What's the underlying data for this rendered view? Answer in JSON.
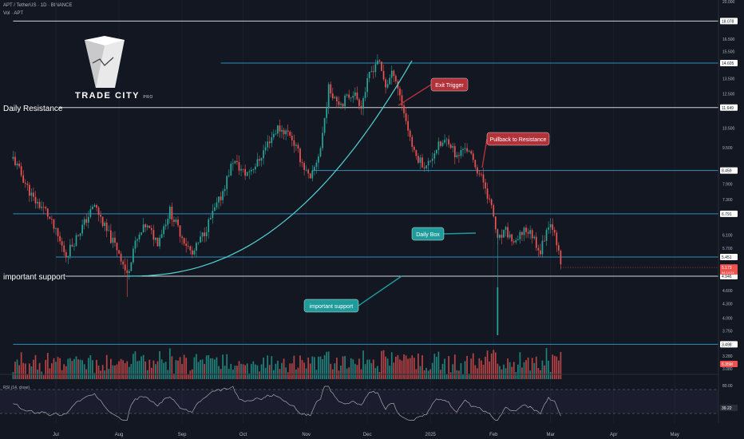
{
  "header": {
    "symbol": "APT / TetherUS · 1D · BINANCE",
    "volume_label": "Vol · APT"
  },
  "brand": {
    "name": "TRADE CITY",
    "suffix": "PRO"
  },
  "colors": {
    "background": "#131722",
    "up": "#26a69a",
    "down": "#ef5350",
    "level_blue": "#2a8fbd",
    "level_white": "#d1d4dc",
    "curve": "#53d3d3",
    "callout_red": "#b2323a",
    "callout_teal": "#1f9b9b",
    "rsi": "#a7a9b0"
  },
  "chart_data": {
    "type": "candlestick",
    "symbol": "APT / TetherUS",
    "interval": "1D",
    "exchange": "BINANCE",
    "scale": "log",
    "x_ticks": [
      "Jul",
      "Aug",
      "Sep",
      "Oct",
      "Nov",
      "Dec",
      "2025",
      "Feb",
      "Mar",
      "Apr",
      "May"
    ],
    "y_ticks": [
      "20.000",
      "16.500",
      "15.500",
      "13.500",
      "12.500",
      "10.500",
      "9.500",
      "7.900",
      "7.300",
      "6.100",
      "5.700",
      "4.600",
      "4.300",
      "4.000",
      "3.750"
    ],
    "volume_ticks": [
      "3.280",
      "3.080"
    ],
    "anchors": [
      [
        "2024-06-10",
        9.0
      ],
      [
        "2024-06-20",
        7.3
      ],
      [
        "2024-06-26",
        6.9
      ],
      [
        "2024-07-06",
        5.5
      ],
      [
        "2024-07-16",
        6.6
      ],
      [
        "2024-07-20",
        7.1
      ],
      [
        "2024-07-26",
        6.2
      ],
      [
        "2024-08-01",
        5.6
      ],
      [
        "2024-08-05",
        4.95
      ],
      [
        "2024-08-08",
        5.7
      ],
      [
        "2024-08-14",
        6.4
      ],
      [
        "2024-08-20",
        5.9
      ],
      [
        "2024-08-26",
        6.9
      ],
      [
        "2024-08-30",
        6.3
      ],
      [
        "2024-09-06",
        5.5
      ],
      [
        "2024-09-12",
        6.2
      ],
      [
        "2024-09-20",
        7.4
      ],
      [
        "2024-09-26",
        8.9
      ],
      [
        "2024-10-02",
        8.3
      ],
      [
        "2024-10-08",
        8.8
      ],
      [
        "2024-10-14",
        9.9
      ],
      [
        "2024-10-18",
        10.5
      ],
      [
        "2024-10-24",
        10.2
      ],
      [
        "2024-10-30",
        8.8
      ],
      [
        "2024-11-03",
        8.0
      ],
      [
        "2024-11-08",
        9.5
      ],
      [
        "2024-11-12",
        12.8
      ],
      [
        "2024-11-18",
        11.9
      ],
      [
        "2024-11-24",
        12.6
      ],
      [
        "2024-11-28",
        11.8
      ],
      [
        "2024-12-02",
        13.7
      ],
      [
        "2024-12-06",
        14.9
      ],
      [
        "2024-12-10",
        13.0
      ],
      [
        "2024-12-14",
        14.0
      ],
      [
        "2024-12-19",
        11.4
      ],
      [
        "2024-12-24",
        9.2
      ],
      [
        "2024-12-30",
        8.6
      ],
      [
        "2025-01-04",
        9.5
      ],
      [
        "2025-01-10",
        9.9
      ],
      [
        "2025-01-14",
        9.0
      ],
      [
        "2025-01-18",
        9.6
      ],
      [
        "2025-01-24",
        8.5
      ],
      [
        "2025-01-28",
        7.8
      ],
      [
        "2025-02-01",
        6.7
      ],
      [
        "2025-02-03",
        5.9
      ],
      [
        "2025-02-07",
        6.2
      ],
      [
        "2025-02-12",
        5.8
      ],
      [
        "2025-02-16",
        6.3
      ],
      [
        "2025-02-20",
        6.1
      ],
      [
        "2025-02-24",
        5.6
      ],
      [
        "2025-02-28",
        6.5
      ],
      [
        "2025-03-03",
        6.3
      ],
      [
        "2025-03-06",
        5.17
      ]
    ],
    "levels": [
      {
        "price": 18.078,
        "label": "18.078",
        "color": "white",
        "from": "2024-06-10"
      },
      {
        "price": 14.605,
        "label": "14.605",
        "color": "blue",
        "from": "2024-09-20"
      },
      {
        "price": 11.649,
        "label": "11.649",
        "color": "white",
        "from": "2024-06-10"
      },
      {
        "price": 8.459,
        "label": "8.459",
        "color": "blue",
        "from": "2024-11-04"
      },
      {
        "price": 6.791,
        "label": "6.791",
        "color": "blue",
        "from": "2024-06-10"
      },
      {
        "price": 5.451,
        "label": "5.451",
        "color": "blue",
        "from": "2024-07-01"
      },
      {
        "price": 4.946,
        "label": "4.946",
        "color": "white",
        "from": "2024-06-10"
      },
      {
        "price": 3.498,
        "label": "3.498",
        "color": "blue",
        "from": "2024-06-10"
      }
    ],
    "current_price": {
      "value": 5.17,
      "label": "5.173",
      "countdown": "04:14:24"
    },
    "volume_badge": "6.35M",
    "line_labels": {
      "daily_resistance": "Daily Resistance",
      "important_support": "important support"
    },
    "annotations": {
      "exit_trigger": "Exit Trigger",
      "pullback": "Pullback to Resistance",
      "daily_box": "Daily Box",
      "important_support": "important support"
    },
    "rsi": {
      "title": "RSI (14, close)",
      "ticks": [
        "80.00"
      ],
      "value_label": "39.22",
      "upper": 70,
      "lower": 30
    }
  }
}
